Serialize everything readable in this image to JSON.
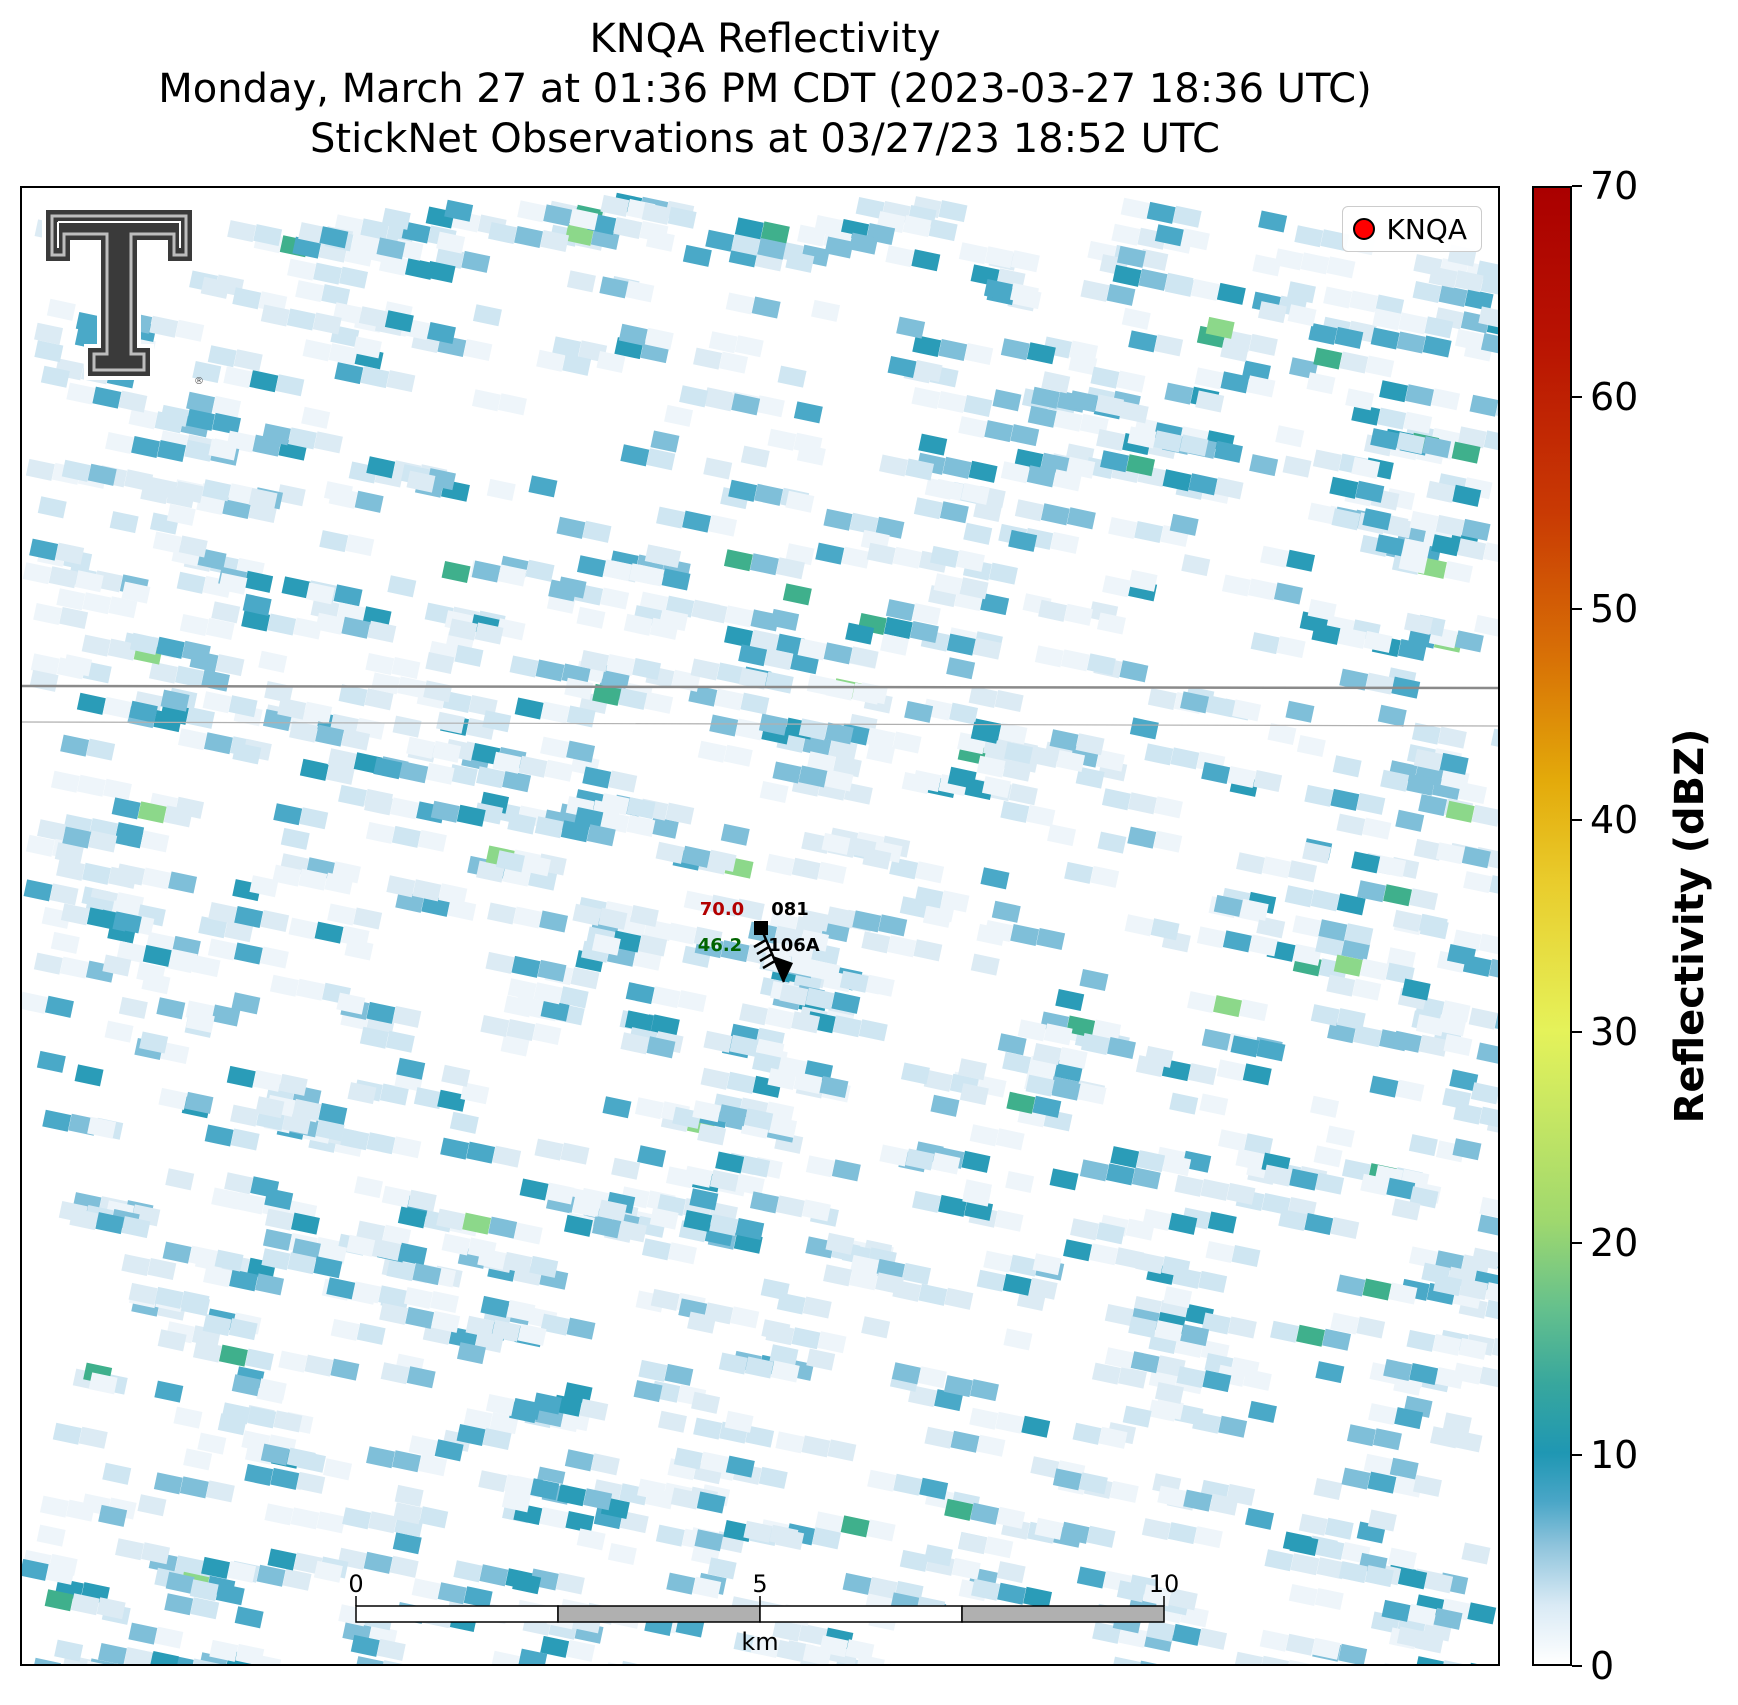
{
  "title": {
    "line1": "KNQA Reflectivity",
    "line2": "Monday, March 27 at 01:36 PM CDT (2023-03-27 18:36 UTC)",
    "line3": "StickNet Observations at 03/27/23 18:52 UTC"
  },
  "legend": {
    "label": "KNQA",
    "marker_color": "#ff0000"
  },
  "colorbar": {
    "title": "Reflectivity (dBZ)",
    "ticks": [
      "0",
      "10",
      "20",
      "30",
      "40",
      "50",
      "60",
      "70"
    ],
    "range": [
      0,
      70
    ]
  },
  "station": {
    "id_top": "081",
    "id_bottom": "106A",
    "temperature": "70.0",
    "dewpoint": "46.2",
    "temperature_color": "#b30000",
    "dewpoint_color": "#006400",
    "wind_barb": "wind-barb-icon"
  },
  "scale_bar": {
    "ticks": [
      "0",
      "5",
      "10"
    ],
    "unit": "km"
  },
  "logo": "texas-tech-double-t-logo",
  "colors": {
    "light": "#cfe6f2",
    "mid": "#7fbfd9",
    "teal": "#2a9cb8",
    "green": "#3fb08c",
    "lightgreen": "#8cd88a"
  }
}
